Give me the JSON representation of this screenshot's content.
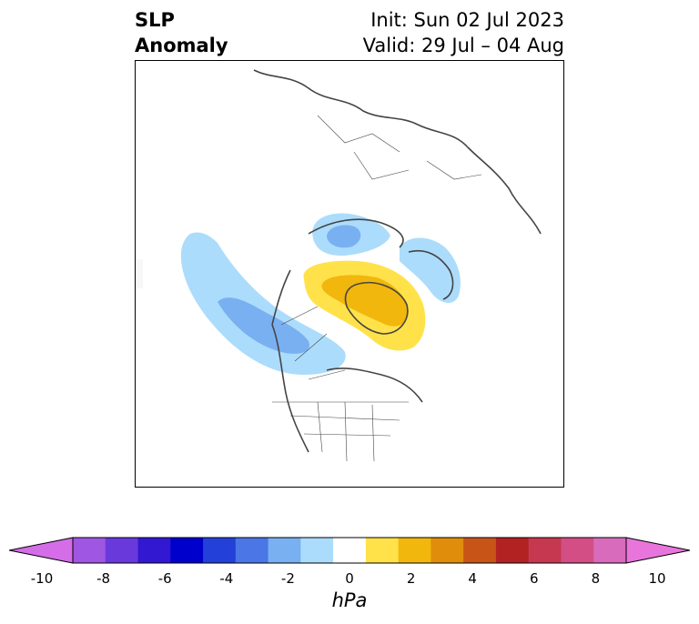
{
  "title": {
    "left_line1": "SLP",
    "left_line2": "Anomaly",
    "right_line1": "Init: Sun 02 Jul 2023",
    "right_line2": "Valid: 29 Jul – 04 Aug"
  },
  "colorbar": {
    "unit_label": "hPa",
    "ticks": [
      "-10",
      "-8",
      "-6",
      "-4",
      "-2",
      "0",
      "2",
      "4",
      "6",
      "8",
      "10"
    ],
    "colors": [
      "#9f56e2",
      "#6a39dc",
      "#3218d0",
      "#0000cc",
      "#2341d8",
      "#4a76e6",
      "#79b0f2",
      "#acdcfb",
      "#ffffff",
      "#ffe24a",
      "#f2b70c",
      "#df8d0b",
      "#c95418",
      "#b22222",
      "#c63750",
      "#d24e84",
      "#d86bbc"
    ],
    "min_extend_color": "#d56de8",
    "max_extend_color": "#e875dc"
  },
  "map": {
    "projection": "polar",
    "anomaly_colors": {
      "neg_light": "#acdcfb",
      "neg_mid": "#79b0f2",
      "pos_light": "#ffe24a",
      "pos_mid": "#f2b70c"
    }
  }
}
